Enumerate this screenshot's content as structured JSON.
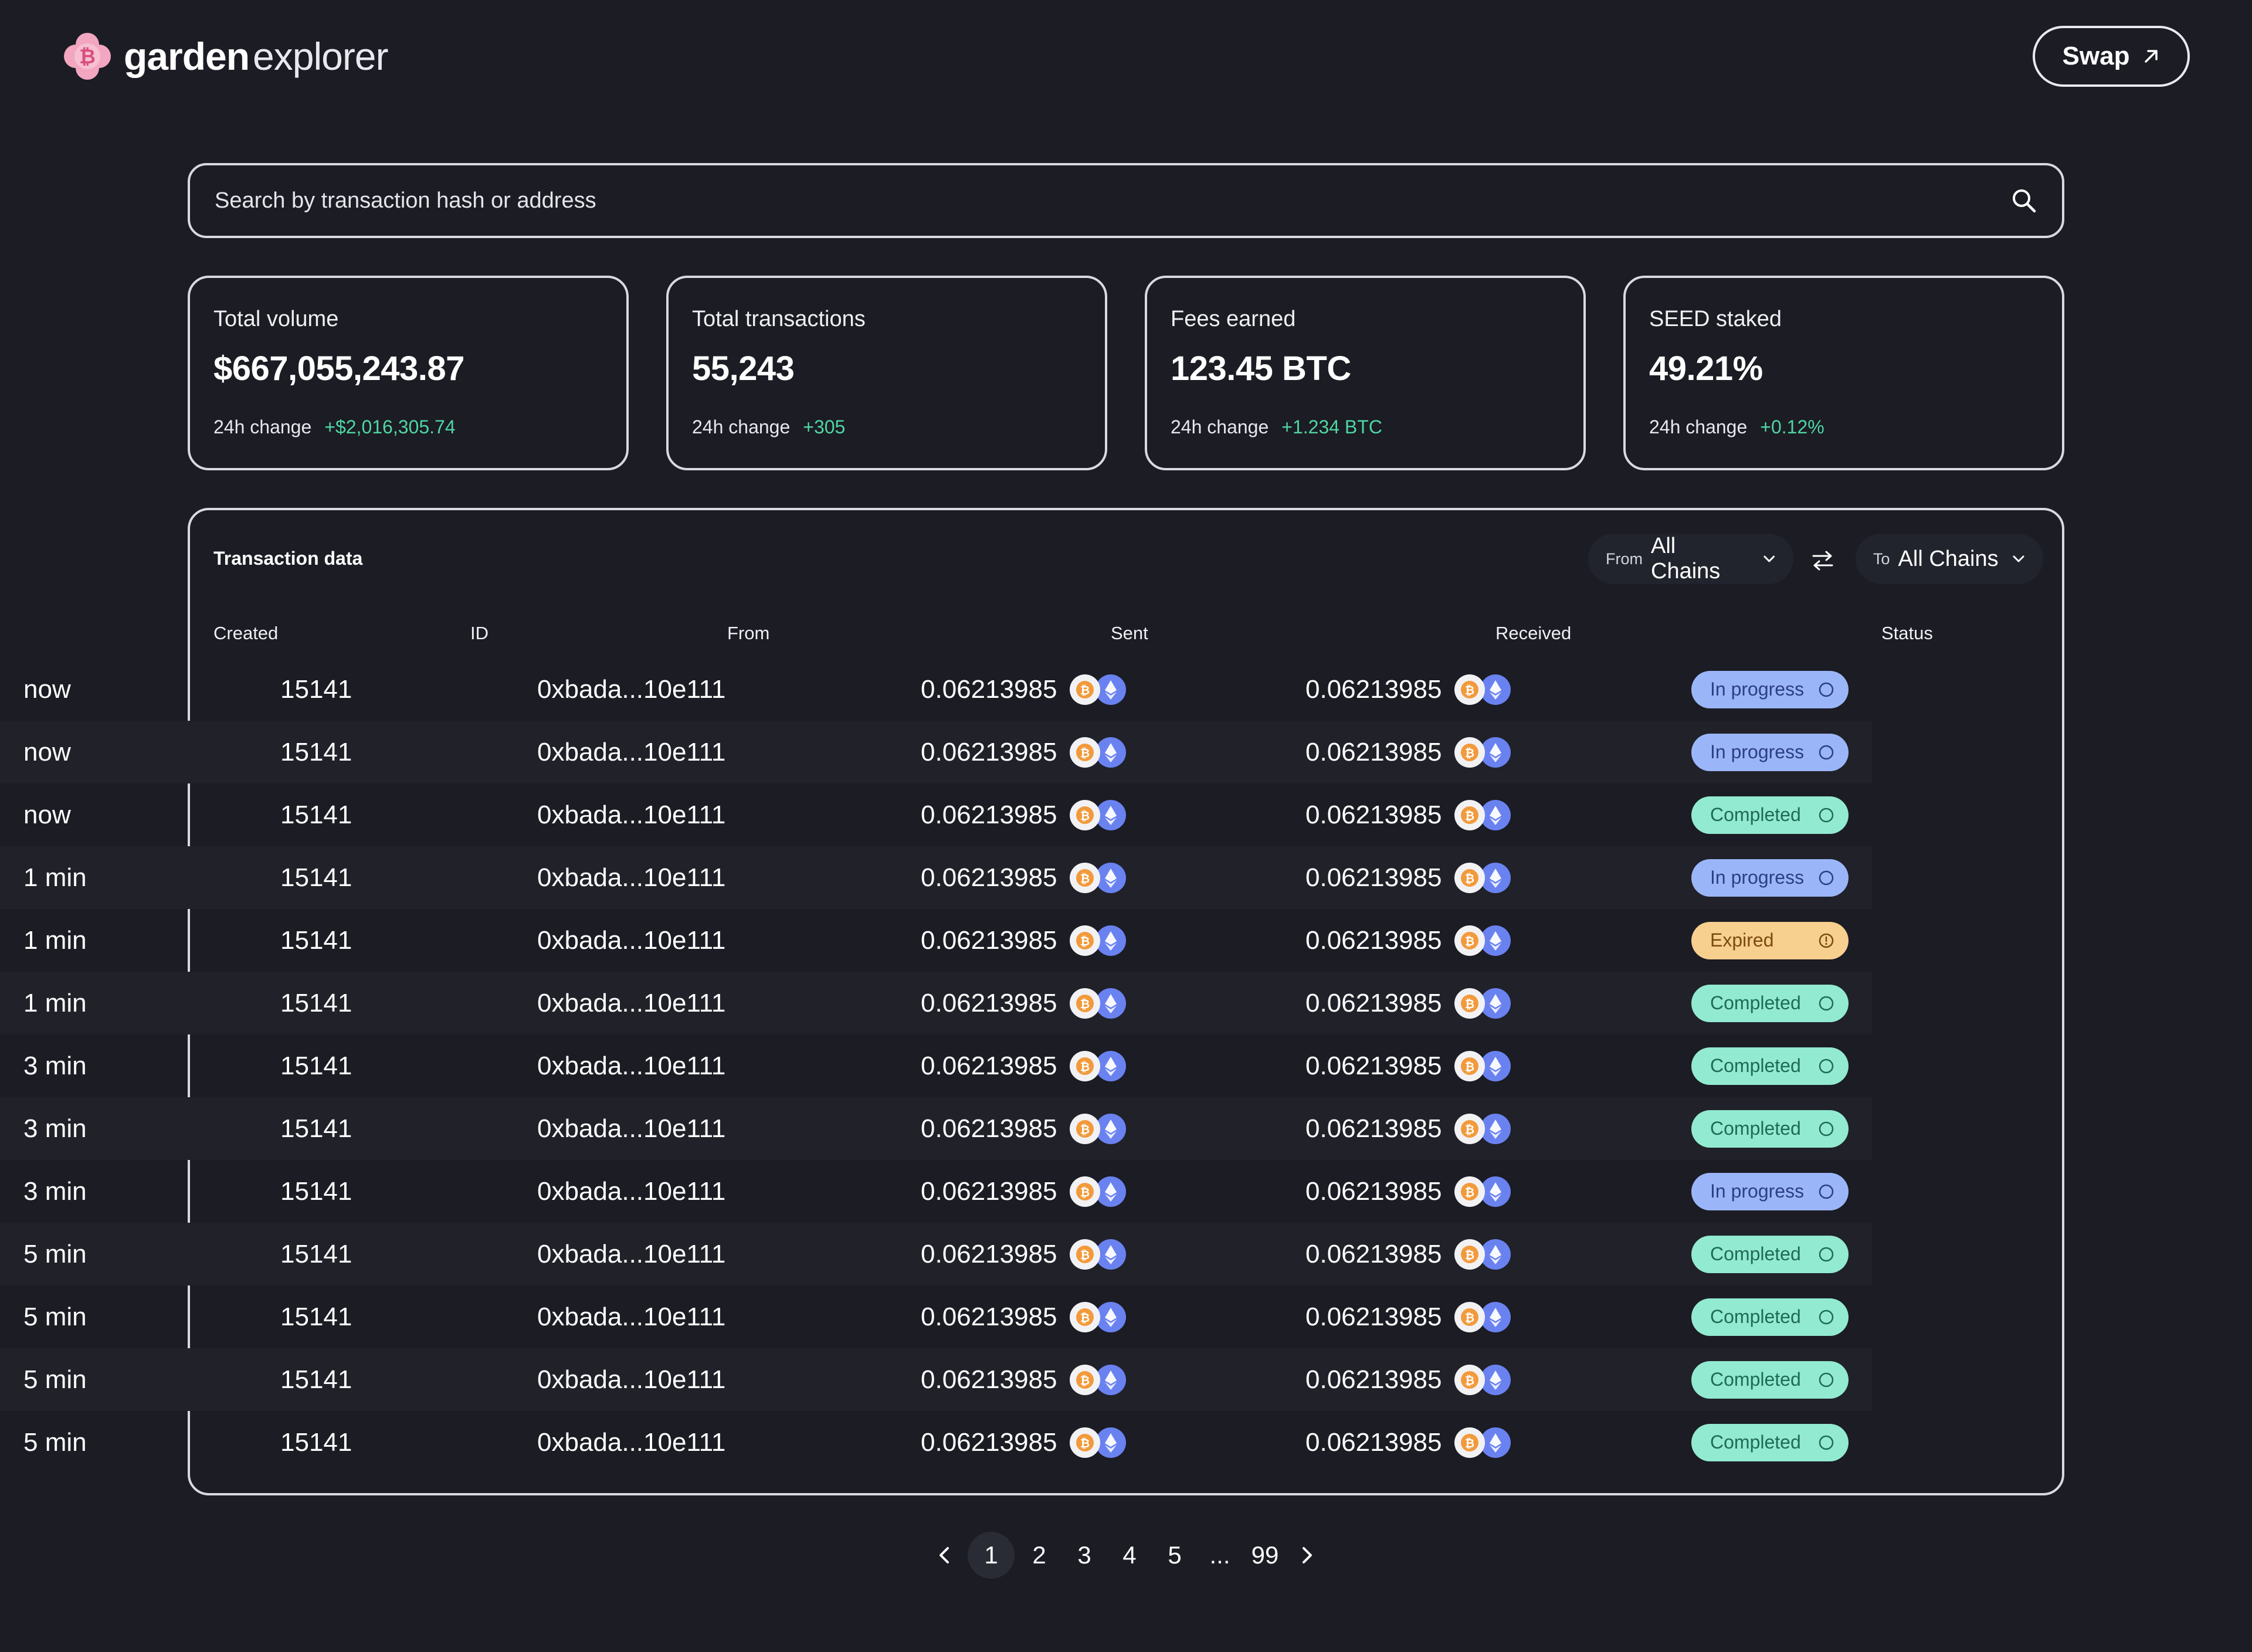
{
  "header": {
    "brand_primary": "garden",
    "brand_secondary": "explorer",
    "swap_label": "Swap"
  },
  "search": {
    "placeholder": "Search by transaction hash or address"
  },
  "stats": [
    {
      "title": "Total volume",
      "value": "$667,055,243.87",
      "change_label": "24h change",
      "change_value": "+$2,016,305.74"
    },
    {
      "title": "Total transactions",
      "value": "55,243",
      "change_label": "24h change",
      "change_value": "+305"
    },
    {
      "title": "Fees earned",
      "value": "123.45 BTC",
      "change_label": "24h change",
      "change_value": "+1.234 BTC"
    },
    {
      "title": "SEED staked",
      "value": "49.21%",
      "change_label": "24h change",
      "change_value": "+0.12%"
    }
  ],
  "table": {
    "title": "Transaction data",
    "from_filter": {
      "label": "From",
      "value": "All Chains"
    },
    "to_filter": {
      "label": "To",
      "value": "All Chains"
    },
    "columns": [
      "Created",
      "ID",
      "From",
      "Sent",
      "Received",
      "Status"
    ],
    "rows": [
      {
        "created": "now",
        "id": "15141",
        "from": "0xbada...10e111",
        "sent": "0.06213985",
        "received": "0.06213985",
        "status": "In progress",
        "status_kind": "progress"
      },
      {
        "created": "now",
        "id": "15141",
        "from": "0xbada...10e111",
        "sent": "0.06213985",
        "received": "0.06213985",
        "status": "In progress",
        "status_kind": "progress"
      },
      {
        "created": "now",
        "id": "15141",
        "from": "0xbada...10e111",
        "sent": "0.06213985",
        "received": "0.06213985",
        "status": "Completed",
        "status_kind": "completed"
      },
      {
        "created": "1 min",
        "id": "15141",
        "from": "0xbada...10e111",
        "sent": "0.06213985",
        "received": "0.06213985",
        "status": "In progress",
        "status_kind": "progress"
      },
      {
        "created": "1 min",
        "id": "15141",
        "from": "0xbada...10e111",
        "sent": "0.06213985",
        "received": "0.06213985",
        "status": "Expired",
        "status_kind": "expired"
      },
      {
        "created": "1 min",
        "id": "15141",
        "from": "0xbada...10e111",
        "sent": "0.06213985",
        "received": "0.06213985",
        "status": "Completed",
        "status_kind": "completed"
      },
      {
        "created": "3 min",
        "id": "15141",
        "from": "0xbada...10e111",
        "sent": "0.06213985",
        "received": "0.06213985",
        "status": "Completed",
        "status_kind": "completed"
      },
      {
        "created": "3 min",
        "id": "15141",
        "from": "0xbada...10e111",
        "sent": "0.06213985",
        "received": "0.06213985",
        "status": "Completed",
        "status_kind": "completed"
      },
      {
        "created": "3 min",
        "id": "15141",
        "from": "0xbada...10e111",
        "sent": "0.06213985",
        "received": "0.06213985",
        "status": "In progress",
        "status_kind": "progress"
      },
      {
        "created": "5 min",
        "id": "15141",
        "from": "0xbada...10e111",
        "sent": "0.06213985",
        "received": "0.06213985",
        "status": "Completed",
        "status_kind": "completed"
      },
      {
        "created": "5 min",
        "id": "15141",
        "from": "0xbada...10e111",
        "sent": "0.06213985",
        "received": "0.06213985",
        "status": "Completed",
        "status_kind": "completed"
      },
      {
        "created": "5 min",
        "id": "15141",
        "from": "0xbada...10e111",
        "sent": "0.06213985",
        "received": "0.06213985",
        "status": "Completed",
        "status_kind": "completed"
      },
      {
        "created": "5 min",
        "id": "15141",
        "from": "0xbada...10e111",
        "sent": "0.06213985",
        "received": "0.06213985",
        "status": "Completed",
        "status_kind": "completed"
      }
    ]
  },
  "pagination": {
    "pages": [
      "1",
      "2",
      "3",
      "4",
      "5",
      "...",
      "99"
    ],
    "current": "1"
  },
  "colors": {
    "background": "#1b1c24",
    "positive": "#4fd6a3",
    "status_progress": "#9bb6f8",
    "status_completed": "#92ead0",
    "status_expired": "#f7cf8e",
    "brand_logo": "#f2a6c0"
  },
  "icons": {
    "logo": "garden-flower-bitcoin-icon",
    "swap": "arrow-up-right-icon",
    "search": "search-icon",
    "chain_dropdown": "chevron-down-icon",
    "swap_chains": "swap-arrows-icon",
    "sent_assets": [
      "bitcoin-icon",
      "ethereum-icon"
    ],
    "status_progress": "circle-icon",
    "status_completed": "circle-icon",
    "status_expired": "alert-circle-icon",
    "prev_page": "chevron-left-icon",
    "next_page": "chevron-right-icon"
  }
}
